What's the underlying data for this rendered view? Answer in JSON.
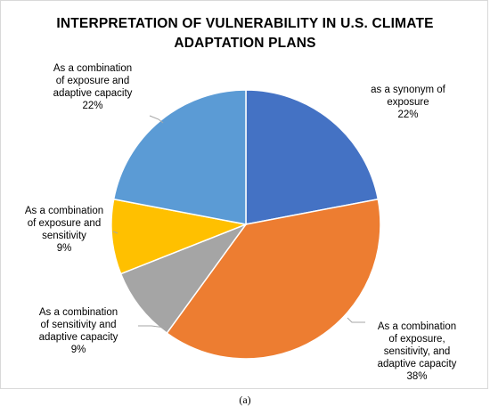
{
  "chart_data": {
    "type": "pie",
    "title_lines": [
      "INTERPRETATION OF VULNERABILITY IN U.S. CLIMATE",
      "ADAPTATION PLANS"
    ],
    "caption": "(a)",
    "slices": [
      {
        "label_lines": [
          "as a synonym of",
          "exposure"
        ],
        "value": 22,
        "value_label": "22%",
        "color": "#4472C4"
      },
      {
        "label_lines": [
          "As a combination",
          "of exposure,",
          "sensitivity, and",
          "adaptive capacity"
        ],
        "value": 38,
        "value_label": "38%",
        "color": "#ED7D31"
      },
      {
        "label_lines": [
          "As a combination",
          "of sensitivity and",
          "adaptive capacity"
        ],
        "value": 9,
        "value_label": "9%",
        "color": "#A5A5A5"
      },
      {
        "label_lines": [
          "As a combination",
          "of exposure and",
          "sensitivity"
        ],
        "value": 9,
        "value_label": "9%",
        "color": "#FFC000"
      },
      {
        "label_lines": [
          "As a combination",
          "of exposure and",
          "adaptive capacity"
        ],
        "value": 22,
        "value_label": "22%",
        "color": "#5B9BD5"
      }
    ],
    "legend": "none",
    "start_angle_deg": 0,
    "direction": "clockwise"
  }
}
